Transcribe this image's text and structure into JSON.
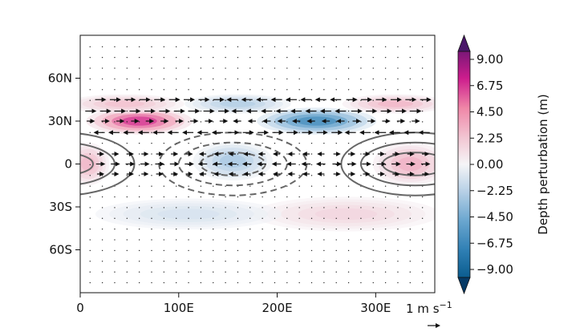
{
  "chart_data": {
    "type": "heatmap",
    "title": "",
    "xlabel": "",
    "ylabel": "",
    "xlim": [
      0,
      360
    ],
    "ylim": [
      -90,
      90
    ],
    "x_ticks": [
      0,
      100,
      200,
      300
    ],
    "x_tick_labels": [
      "0",
      "100E",
      "200E",
      "300E"
    ],
    "y_ticks": [
      60,
      30,
      0,
      -30,
      -60
    ],
    "y_tick_labels": [
      "60N",
      "30N",
      "0",
      "30S",
      "60S"
    ],
    "colorbar": {
      "label": "Depth perturbation (m)",
      "min": -9.0,
      "max": 9.0,
      "extend": "both",
      "ticks": [
        9.0,
        6.75,
        4.5,
        2.25,
        0.0,
        -2.25,
        -4.5,
        -6.75,
        -9.0
      ],
      "tick_labels": [
        "9.00",
        "6.75",
        "4.50",
        "2.25",
        "0.00",
        "−2.25",
        "−4.50",
        "−6.75",
        "−9.00"
      ],
      "colors": {
        "low": "#0b5d8f",
        "mid": "#f5f5f7",
        "high": "#cd1d8d",
        "under": "#063a66",
        "over": "#4a1769"
      }
    },
    "depth_field": [
      {
        "lon_center": 60,
        "lat_center": 30,
        "lon_halfwidth": 40,
        "lat_halfwidth": 7,
        "value": 6.8
      },
      {
        "lon_center": 45,
        "lat_center": 42,
        "lon_halfwidth": 45,
        "lat_halfwidth": 5,
        "value": 2.5
      },
      {
        "lon_center": 240,
        "lat_center": 30,
        "lon_halfwidth": 45,
        "lat_halfwidth": 7,
        "value": -6.5
      },
      {
        "lon_center": 160,
        "lat_center": 42,
        "lon_halfwidth": 40,
        "lat_halfwidth": 5,
        "value": -2.5
      },
      {
        "lon_center": 320,
        "lat_center": 42,
        "lon_halfwidth": 40,
        "lat_halfwidth": 5,
        "value": 3.0
      },
      {
        "lon_center": 335,
        "lat_center": 0,
        "lon_halfwidth": 28,
        "lat_halfwidth": 11,
        "value": 3.2
      },
      {
        "lon_center": 8,
        "lat_center": 0,
        "lon_halfwidth": 16,
        "lat_halfwidth": 11,
        "value": 3.0
      },
      {
        "lon_center": 155,
        "lat_center": 2,
        "lon_halfwidth": 30,
        "lat_halfwidth": 10,
        "value": -2.8
      },
      {
        "lon_center": 270,
        "lat_center": -35,
        "lon_halfwidth": 70,
        "lat_halfwidth": 9,
        "value": 1.6
      },
      {
        "lon_center": 110,
        "lat_center": -35,
        "lon_halfwidth": 70,
        "lat_halfwidth": 8,
        "value": -1.2
      }
    ],
    "contours": [
      {
        "lon_center": 155,
        "lat_center": 0,
        "lon_radius": 75,
        "lat_radius": 22,
        "style": "dashed"
      },
      {
        "lon_center": 155,
        "lat_center": 0,
        "lon_radius": 55,
        "lat_radius": 15,
        "style": "dashed"
      },
      {
        "lon_center": 155,
        "lat_center": 0,
        "lon_radius": 33,
        "lat_radius": 8,
        "style": "dashed"
      },
      {
        "lon_center": 340,
        "lat_center": 0,
        "lon_radius": 75,
        "lat_radius": 22,
        "style": "solid"
      },
      {
        "lon_center": 340,
        "lat_center": 0,
        "lon_radius": 55,
        "lat_radius": 15,
        "style": "solid"
      },
      {
        "lon_center": 340,
        "lat_center": 0,
        "lon_radius": 33,
        "lat_radius": 8,
        "style": "solid"
      }
    ],
    "wind_rows": [
      {
        "lat": 45,
        "lon_start": 20,
        "lon_end": 355,
        "direction_by_lon": [
          [
            0,
            150,
            1
          ],
          [
            150,
            270,
            -1
          ],
          [
            270,
            360,
            1
          ]
        ],
        "magnitude": 1.0
      },
      {
        "lat": 37,
        "lon_start": 10,
        "lon_end": 345,
        "direction_by_lon": [
          [
            0,
            150,
            1
          ],
          [
            150,
            270,
            -1
          ],
          [
            270,
            360,
            1
          ]
        ],
        "magnitude": 1.0
      },
      {
        "lat": 30,
        "lon_start": 10,
        "lon_end": 345,
        "direction_by_lon": [
          [
            0,
            150,
            1
          ],
          [
            150,
            270,
            -1
          ],
          [
            270,
            360,
            1
          ]
        ],
        "magnitude": 0.7
      },
      {
        "lat": 22,
        "lon_start": 20,
        "lon_end": 355,
        "direction_by_lon": [
          [
            0,
            150,
            -1
          ],
          [
            150,
            270,
            1
          ],
          [
            270,
            360,
            -1
          ]
        ],
        "magnitude": 1.0
      },
      {
        "lat": 7,
        "lon_start": 20,
        "lon_end": 355,
        "direction_by_lon": [
          [
            0,
            120,
            1
          ],
          [
            120,
            250,
            -1
          ],
          [
            250,
            360,
            1
          ]
        ],
        "magnitude": 0.6
      },
      {
        "lat": 0,
        "lon_start": 20,
        "lon_end": 355,
        "direction_by_lon": [
          [
            0,
            120,
            1
          ],
          [
            120,
            250,
            -1
          ],
          [
            250,
            360,
            1
          ]
        ],
        "magnitude": 0.8
      },
      {
        "lat": -7,
        "lon_start": 20,
        "lon_end": 355,
        "direction_by_lon": [
          [
            0,
            120,
            1
          ],
          [
            120,
            250,
            -1
          ],
          [
            250,
            360,
            1
          ]
        ],
        "magnitude": 0.6
      }
    ],
    "quiver_key": {
      "text": "1 m s",
      "superscript": "−1",
      "magnitude": 1
    }
  }
}
